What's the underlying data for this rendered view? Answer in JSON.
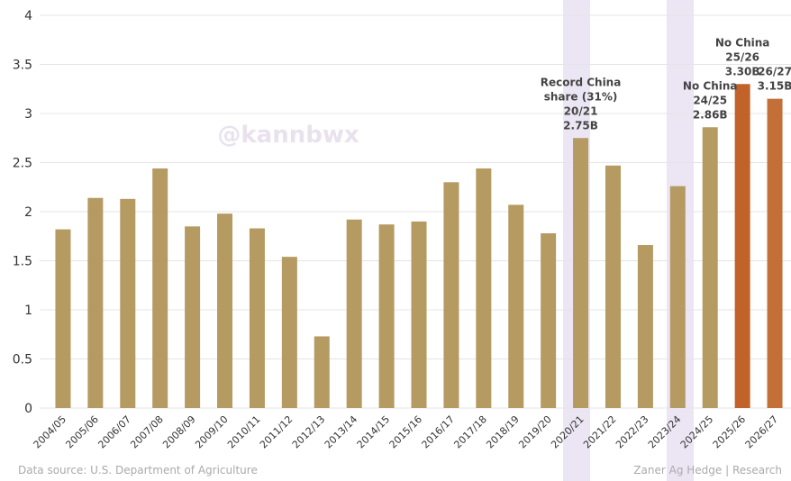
{
  "chart_data": {
    "type": "bar",
    "categories": [
      "2004/05",
      "2005/06",
      "2006/07",
      "2007/08",
      "2008/09",
      "2009/10",
      "2010/11",
      "2011/12",
      "2012/13",
      "2013/14",
      "2014/15",
      "2015/16",
      "2016/17",
      "2017/18",
      "2018/19",
      "2019/20",
      "2020/21",
      "2021/22",
      "2022/23",
      "2023/24",
      "2024/25",
      "2025/26",
      "2026/27"
    ],
    "values": [
      1.82,
      2.14,
      2.13,
      2.44,
      1.85,
      1.98,
      1.83,
      1.54,
      0.73,
      1.92,
      1.87,
      1.9,
      2.3,
      2.44,
      2.07,
      1.78,
      2.75,
      2.47,
      1.66,
      2.26,
      2.86,
      3.3,
      3.15
    ],
    "colors": [
      "#b59a62",
      "#b59a62",
      "#b59a62",
      "#b59a62",
      "#b59a62",
      "#b59a62",
      "#b59a62",
      "#b59a62",
      "#b59a62",
      "#b59a62",
      "#b59a62",
      "#b59a62",
      "#b59a62",
      "#b59a62",
      "#b59a62",
      "#b59a62",
      "#b59a62",
      "#b59a62",
      "#b59a62",
      "#b59a62",
      "#b59a62",
      "#c0622a",
      "#c27038"
    ],
    "ylim": [
      0,
      4
    ],
    "yticks": [
      0,
      0.5,
      1,
      1.5,
      2,
      2.5,
      3,
      3.5,
      4
    ],
    "grid": true,
    "annotations": [
      {
        "category": "2020/21",
        "lines": [
          "Record China",
          "share (31%)",
          "20/21",
          "2.75B"
        ]
      },
      {
        "category": "2024/25",
        "lines": [
          "No China",
          "24/25",
          "2.86B"
        ]
      },
      {
        "category": "2025/26",
        "lines": [
          "No China",
          "25/26",
          "3.30B"
        ]
      },
      {
        "category": "2026/27",
        "lines": [
          "26/27",
          "3.15B"
        ]
      }
    ],
    "watermark": "@kannbwx",
    "source": "Data source: U.S. Department of Agriculture",
    "credit": "Zaner Ag Hedge | Research"
  }
}
